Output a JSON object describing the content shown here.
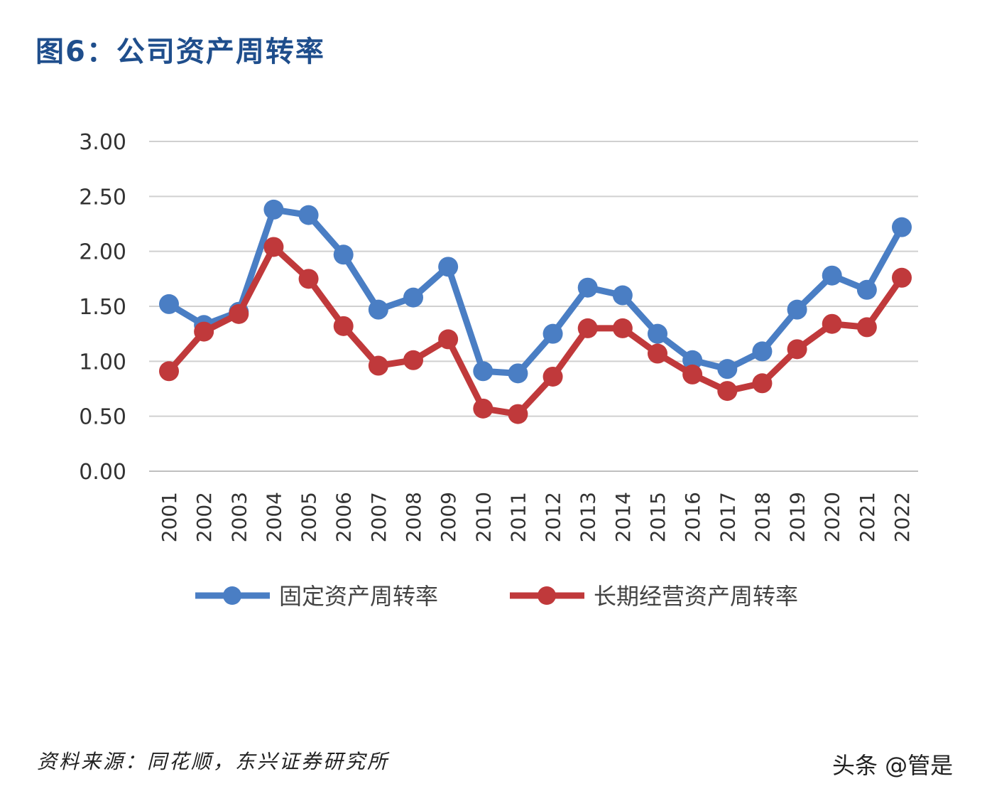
{
  "title": "图6：公司资产周转率",
  "source": "资料来源：同花顺，东兴证券研究所",
  "watermark": "头条 @管是",
  "chart_data": {
    "type": "line",
    "title": "图6：公司资产周转率",
    "xlabel": "",
    "ylabel": "",
    "ylim": [
      0,
      3
    ],
    "yticks": [
      "0.00",
      "0.50",
      "1.00",
      "1.50",
      "2.00",
      "2.50",
      "3.00"
    ],
    "grid": true,
    "legend_position": "bottom",
    "categories": [
      "2001",
      "2002",
      "2003",
      "2004",
      "2005",
      "2006",
      "2007",
      "2008",
      "2009",
      "2010",
      "2011",
      "2012",
      "2013",
      "2014",
      "2015",
      "2016",
      "2017",
      "2018",
      "2019",
      "2020",
      "2021",
      "2022"
    ],
    "series": [
      {
        "name": "固定资产周转率",
        "color": "#4a7ec4",
        "values": [
          1.52,
          1.33,
          1.45,
          2.38,
          2.33,
          1.97,
          1.47,
          1.58,
          1.86,
          0.91,
          0.89,
          1.25,
          1.67,
          1.6,
          1.25,
          1.01,
          0.93,
          1.09,
          1.47,
          1.78,
          1.65,
          2.22
        ]
      },
      {
        "name": "长期经营资产周转率",
        "color": "#c0393b",
        "values": [
          0.91,
          1.27,
          1.43,
          2.04,
          1.75,
          1.32,
          0.96,
          1.01,
          1.2,
          0.57,
          0.52,
          0.86,
          1.3,
          1.3,
          1.07,
          0.88,
          0.73,
          0.8,
          1.11,
          1.34,
          1.31,
          1.76
        ]
      }
    ]
  }
}
